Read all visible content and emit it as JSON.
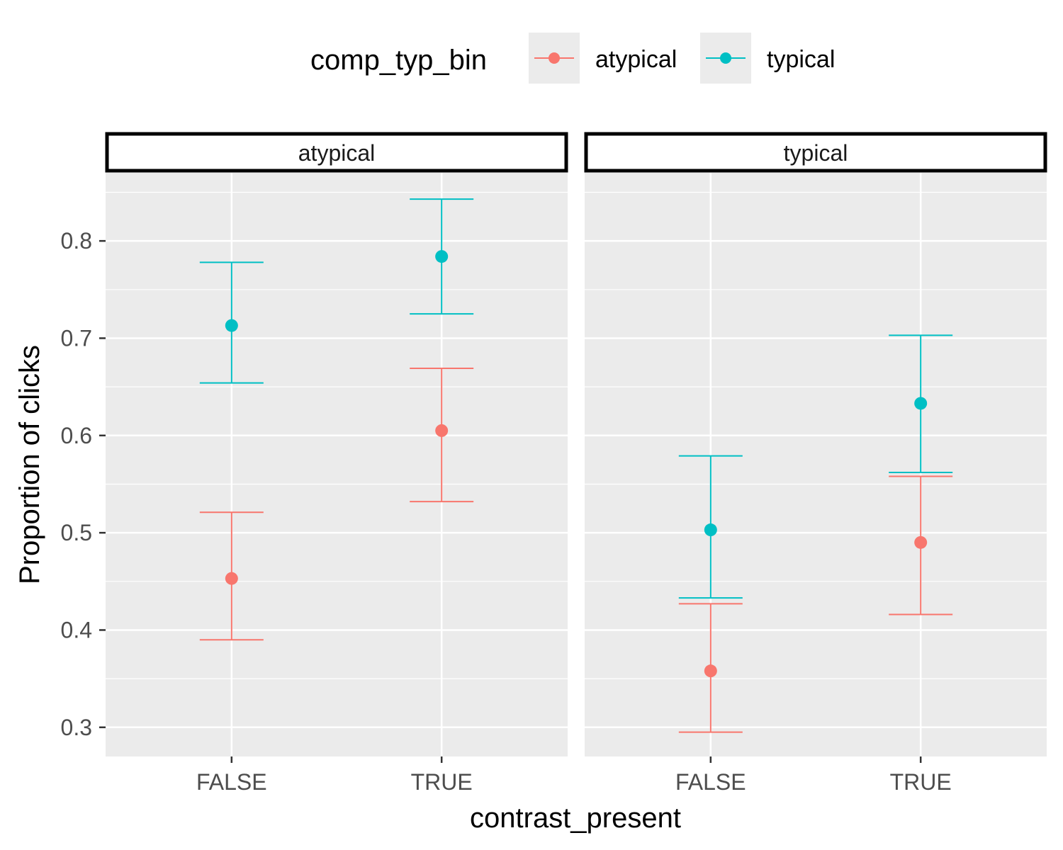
{
  "chart_data": {
    "type": "scatter",
    "subtype": "point-with-errorbars",
    "facet_var": "comp_typ_bin",
    "facets": [
      "atypical",
      "typical"
    ],
    "xlabel": "contrast_present",
    "ylabel": "Proportion of clicks",
    "categories": [
      "FALSE",
      "TRUE"
    ],
    "ylim": [
      0.27,
      0.87
    ],
    "yticks": [
      0.3,
      0.4,
      0.5,
      0.6,
      0.7,
      0.8
    ],
    "ytick_labels": [
      "0.3",
      "0.4",
      "0.5",
      "0.6",
      "0.7",
      "0.8"
    ],
    "grid": true,
    "legend": {
      "title": "comp_typ_bin",
      "position": "top",
      "entries": [
        {
          "name": "atypical",
          "color": "#F8766D"
        },
        {
          "name": "typical",
          "color": "#00BFC4"
        }
      ]
    },
    "panels": [
      {
        "facet": "atypical",
        "series": [
          {
            "name": "atypical",
            "color": "#F8766D",
            "points": [
              {
                "x": "FALSE",
                "y": 0.453,
                "ymin": 0.39,
                "ymax": 0.521
              },
              {
                "x": "TRUE",
                "y": 0.605,
                "ymin": 0.532,
                "ymax": 0.669
              }
            ]
          },
          {
            "name": "typical",
            "color": "#00BFC4",
            "points": [
              {
                "x": "FALSE",
                "y": 0.713,
                "ymin": 0.654,
                "ymax": 0.778
              },
              {
                "x": "TRUE",
                "y": 0.784,
                "ymin": 0.725,
                "ymax": 0.843
              }
            ]
          }
        ]
      },
      {
        "facet": "typical",
        "series": [
          {
            "name": "atypical",
            "color": "#F8766D",
            "points": [
              {
                "x": "FALSE",
                "y": 0.358,
                "ymin": 0.295,
                "ymax": 0.427
              },
              {
                "x": "TRUE",
                "y": 0.49,
                "ymin": 0.416,
                "ymax": 0.558
              }
            ]
          },
          {
            "name": "typical",
            "color": "#00BFC4",
            "points": [
              {
                "x": "FALSE",
                "y": 0.503,
                "ymin": 0.433,
                "ymax": 0.579
              },
              {
                "x": "TRUE",
                "y": 0.633,
                "ymin": 0.562,
                "ymax": 0.703
              }
            ]
          }
        ]
      }
    ]
  }
}
